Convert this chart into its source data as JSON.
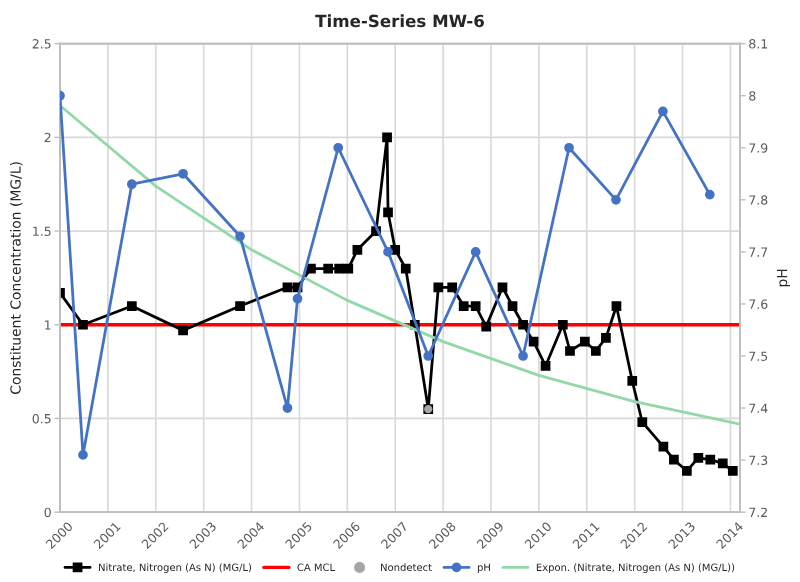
{
  "chart_data": {
    "type": "line",
    "title": "Time-Series MW-6",
    "ylabel": "Constituent Concentration (MG/L)",
    "y2label": "pH",
    "xlim": [
      2000,
      2014.2
    ],
    "xticks": [
      2000,
      2001,
      2002,
      2003,
      2004,
      2005,
      2006,
      2007,
      2008,
      2009,
      2010,
      2011,
      2012,
      2013,
      2014
    ],
    "ylim": [
      0,
      2.5
    ],
    "yticks": [
      0,
      0.5,
      1,
      1.5,
      2,
      2.5
    ],
    "y2lim": [
      7.2,
      8.1
    ],
    "y2ticks": [
      7.2,
      7.3,
      7.4,
      7.5,
      7.6,
      7.7,
      7.8,
      7.9,
      8,
      8.1
    ],
    "grid": true,
    "legend": "bottom",
    "series": [
      {
        "name": "Nitrate, Nitrogen (As N) (MG/L)",
        "color": "#000000",
        "marker": "square",
        "x": [
          2000.0,
          2000.48,
          2001.5,
          2002.57,
          2003.76,
          2004.75,
          2004.96,
          2005.24,
          2005.6,
          2005.83,
          2006.02,
          2006.21,
          2006.6,
          2006.83,
          2006.85,
          2007.0,
          2007.22,
          2007.41,
          2007.69,
          2007.9,
          2008.19,
          2008.43,
          2008.68,
          2008.9,
          2009.24,
          2009.45,
          2009.67,
          2009.89,
          2010.14,
          2010.5,
          2010.65,
          2010.96,
          2011.19,
          2011.4,
          2011.62,
          2011.95,
          2012.16,
          2012.6,
          2012.82,
          2013.09,
          2013.33,
          2013.58,
          2013.84,
          2014.05
        ],
        "values": [
          1.17,
          1.0,
          1.1,
          0.97,
          1.1,
          1.2,
          1.2,
          1.3,
          1.3,
          1.3,
          1.3,
          1.4,
          1.5,
          2.0,
          1.6,
          1.4,
          1.3,
          1.0,
          0.55,
          1.2,
          1.2,
          1.1,
          1.1,
          0.99,
          1.2,
          1.1,
          1.0,
          0.91,
          0.78,
          1.0,
          0.86,
          0.91,
          0.86,
          0.93,
          1.1,
          0.7,
          0.48,
          0.35,
          0.28,
          0.22,
          0.29,
          0.28,
          0.26,
          0.22
        ]
      },
      {
        "name": "Nondetect",
        "type": "scatter",
        "color": "#a6a6a6",
        "marker": "circle",
        "x": [
          2007.69
        ],
        "values": [
          0.55
        ]
      },
      {
        "name": "pH",
        "color": "#4472c4",
        "marker": "circle",
        "axis": "y2",
        "x": [
          2000.0,
          2000.48,
          2001.5,
          2002.57,
          2003.76,
          2004.75,
          2004.96,
          2005.81,
          2006.85,
          2007.69,
          2008.68,
          2009.67,
          2010.63,
          2011.61,
          2012.59,
          2013.57
        ],
        "values": [
          8.0,
          7.31,
          7.83,
          7.85,
          7.73,
          7.4,
          7.61,
          7.9,
          7.7,
          7.5,
          7.7,
          7.5,
          7.9,
          7.8,
          7.97,
          7.81
        ]
      },
      {
        "name": "Expon. (Nitrate, Nitrogen (As N) (MG/L))",
        "color": "#92d8a8",
        "marker": "none",
        "x": [
          2000.0,
          2002.0,
          2004.0,
          2006.0,
          2008.0,
          2010.0,
          2012.0,
          2014.2
        ],
        "values": [
          2.17,
          1.74,
          1.4,
          1.13,
          0.91,
          0.73,
          0.59,
          0.47
        ]
      }
    ],
    "ref_lines": [
      {
        "axis": "y",
        "value": 1.0,
        "label": "CA MCL",
        "color": "#ff0000"
      }
    ]
  }
}
